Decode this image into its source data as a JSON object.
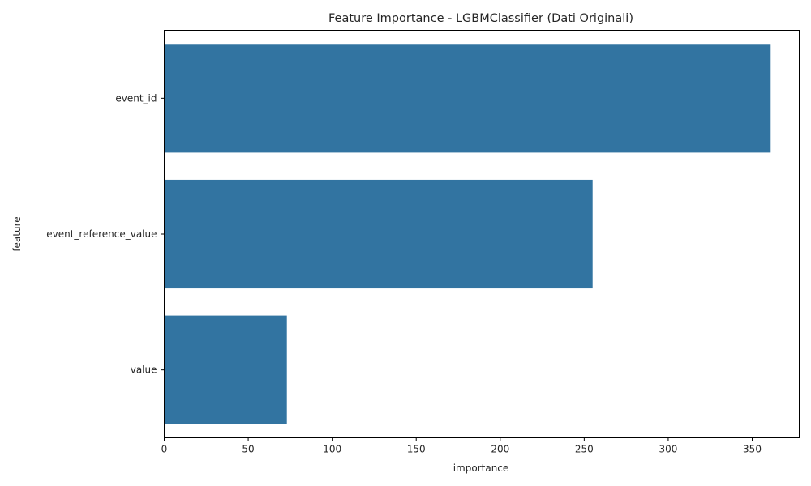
{
  "chart_data": {
    "type": "bar",
    "orientation": "horizontal",
    "title": "Feature Importance - LGBMClassifier (Dati Originali)",
    "xlabel": "importance",
    "ylabel": "feature",
    "categories": [
      "event_id",
      "event_reference_value",
      "value"
    ],
    "values": [
      361,
      255,
      73
    ],
    "xlim": [
      0,
      378
    ],
    "xticks": [
      0,
      50,
      100,
      150,
      200,
      250,
      300,
      350
    ],
    "grid": false,
    "colors": {
      "bar": "#3274a1",
      "axis": "#000000",
      "text": "#262626"
    }
  }
}
